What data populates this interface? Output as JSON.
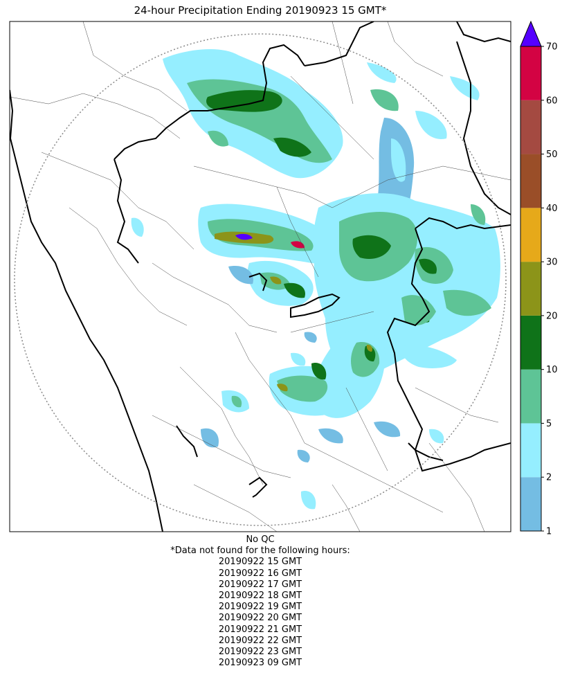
{
  "title": "24-hour Precipitation Ending 20190923 15 GMT*",
  "qc_note": "No QC",
  "missing_header": "*Data not found for the following hours:",
  "missing_hours": [
    "20190922 15 GMT",
    "20190922 16 GMT",
    "20190922 17 GMT",
    "20190922 18 GMT",
    "20190922 19 GMT",
    "20190922 20 GMT",
    "20190922 21 GMT",
    "20190922 22 GMT",
    "20190922 23 GMT",
    "20190923 09 GMT"
  ],
  "colorbar": {
    "ticks": [
      "1",
      "2",
      "5",
      "10",
      "20",
      "30",
      "40",
      "50",
      "60",
      "70"
    ],
    "colors": [
      "#74bde3",
      "#95eeff",
      "#5ec496",
      "#0f7319",
      "#8c9419",
      "#e6a91a",
      "#9a4e28",
      "#a44a41",
      "#d30343"
    ],
    "extend_color": "#5500ff"
  },
  "map_colors": {
    "background": "#ffffff",
    "coast": "#000000",
    "district_lines": "#444444",
    "range_ring": "#888888"
  }
}
